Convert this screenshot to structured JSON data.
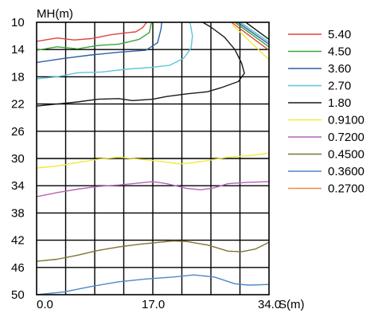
{
  "chart_data": {
    "type": "line",
    "title": "",
    "xlabel": "S(m)",
    "ylabel": "MH(m)",
    "x_ticks": [
      "0.0",
      "17.0",
      "34.0"
    ],
    "x_tick_values": [
      0,
      17,
      34
    ],
    "y_ticks": [
      "10",
      "14",
      "18",
      "22",
      "26",
      "30",
      "34",
      "38",
      "42",
      "46",
      "50"
    ],
    "y_tick_values": [
      10,
      14,
      18,
      22,
      26,
      30,
      34,
      38,
      42,
      46,
      50
    ],
    "xlim": [
      0,
      34
    ],
    "ylim": [
      10,
      50
    ],
    "y_inverted": true,
    "grid": true,
    "legend_position": "right",
    "series": [
      {
        "name": "5.40",
        "color": "#e0443a",
        "points": [
          [
            0,
            12.8
          ],
          [
            3,
            12.3
          ],
          [
            5.5,
            12.6
          ],
          [
            8,
            12.4
          ],
          [
            11,
            11.8
          ],
          [
            13.5,
            11.5
          ],
          [
            14.5,
            11.4
          ],
          [
            15.5,
            10.8
          ],
          [
            16.1,
            10
          ]
        ]
      },
      {
        "name": "4.50",
        "color": "#3aa536",
        "points": [
          [
            0,
            14.1
          ],
          [
            3,
            13.6
          ],
          [
            6,
            13.9
          ],
          [
            9,
            13.4
          ],
          [
            12,
            13.2
          ],
          [
            15,
            12.5
          ],
          [
            16.5,
            11.5
          ],
          [
            16.8,
            10
          ]
        ]
      },
      {
        "name": "3.60",
        "color": "#2e5fa8",
        "points": [
          [
            0,
            15.9
          ],
          [
            4,
            15.3
          ],
          [
            8,
            14.8
          ],
          [
            12,
            14.4
          ],
          [
            16,
            14.1
          ],
          [
            17.7,
            13
          ],
          [
            18.2,
            11
          ],
          [
            18.3,
            10
          ]
        ]
      },
      {
        "name": "2.70",
        "color": "#5ec6d6",
        "points": [
          [
            0,
            18.3
          ],
          [
            3,
            18.0
          ],
          [
            6,
            17.4
          ],
          [
            9.5,
            17.3
          ],
          [
            13,
            16.9
          ],
          [
            17,
            16.6
          ],
          [
            19.5,
            16.3
          ],
          [
            21.5,
            15.3
          ],
          [
            22.6,
            13.8
          ],
          [
            22.8,
            12
          ],
          [
            22.5,
            10.3
          ],
          [
            22.4,
            10
          ]
        ]
      },
      {
        "name": "1.80",
        "color": "#1a1a1a",
        "points": [
          [
            0,
            22.3
          ],
          [
            3,
            22.0
          ],
          [
            6,
            21.7
          ],
          [
            9,
            21.3
          ],
          [
            12,
            21.2
          ],
          [
            14,
            21.5
          ],
          [
            17,
            21.3
          ],
          [
            19,
            20.9
          ],
          [
            22,
            20.5
          ],
          [
            25,
            20.2
          ],
          [
            27,
            19.6
          ],
          [
            29.5,
            18.7
          ],
          [
            30.4,
            17.5
          ],
          [
            30,
            16
          ],
          [
            29,
            14
          ],
          [
            27.5,
            12.2
          ],
          [
            25.5,
            10.7
          ],
          [
            24.3,
            10
          ]
        ]
      },
      {
        "name": "0.9100",
        "color": "#f2e93a",
        "points": [
          [
            0,
            31.4
          ],
          [
            3,
            31.1
          ],
          [
            6,
            30.6
          ],
          [
            9,
            30.1
          ],
          [
            12,
            29.8
          ],
          [
            15,
            30.1
          ],
          [
            18,
            30.4
          ],
          [
            21,
            30.8
          ],
          [
            23,
            30.6
          ],
          [
            25,
            30.3
          ],
          [
            28,
            29.8
          ],
          [
            31,
            29.6
          ],
          [
            34,
            29.2
          ]
        ]
      },
      {
        "name": "0.7200",
        "color": "#b463b6",
        "points": [
          [
            0,
            35.6
          ],
          [
            3,
            35.0
          ],
          [
            6,
            34.5
          ],
          [
            9,
            34.1
          ],
          [
            12,
            33.9
          ],
          [
            15,
            33.6
          ],
          [
            17,
            33.4
          ],
          [
            19,
            33.7
          ],
          [
            22,
            34.4
          ],
          [
            24,
            34.6
          ],
          [
            26,
            34.3
          ],
          [
            28,
            33.7
          ],
          [
            31,
            33.5
          ],
          [
            34,
            33.4
          ]
        ]
      },
      {
        "name": "0.4500",
        "color": "#7d7431",
        "points": [
          [
            0,
            45.1
          ],
          [
            3,
            44.8
          ],
          [
            6,
            44.2
          ],
          [
            9,
            43.5
          ],
          [
            12,
            43.0
          ],
          [
            15,
            42.6
          ],
          [
            18,
            42.3
          ],
          [
            20,
            42.1
          ],
          [
            22,
            42.2
          ],
          [
            25,
            42.7
          ],
          [
            28,
            43.6
          ],
          [
            30,
            43.7
          ],
          [
            32,
            43.3
          ],
          [
            34,
            42.3
          ]
        ]
      },
      {
        "name": "0.3600",
        "color": "#4f87c6",
        "points": [
          [
            0,
            50
          ],
          [
            4,
            49.6
          ],
          [
            8,
            48.8
          ],
          [
            12,
            48.1
          ],
          [
            16,
            47.7
          ],
          [
            20,
            47.4
          ],
          [
            23,
            47.1
          ],
          [
            26,
            47.4
          ],
          [
            29,
            48.4
          ],
          [
            31,
            48.6
          ],
          [
            34,
            48.5
          ]
        ]
      },
      {
        "name": "0.2700",
        "color": "#ec8a4a",
        "points": []
      }
    ],
    "corner_contours": [
      {
        "color": "#e0443a",
        "points": [
          [
            28.5,
            10
          ],
          [
            34,
            14.1
          ]
        ]
      },
      {
        "color": "#3aa536",
        "points": [
          [
            29,
            10
          ],
          [
            34,
            13.6
          ]
        ]
      },
      {
        "color": "#2e5fa8",
        "points": [
          [
            29.4,
            10
          ],
          [
            34,
            13.2
          ]
        ]
      },
      {
        "color": "#5ec6d6",
        "points": [
          [
            29.8,
            10
          ],
          [
            34,
            12.9
          ]
        ]
      },
      {
        "color": "#1a1a1a",
        "points": [
          [
            30.6,
            10
          ],
          [
            34,
            12.5
          ]
        ]
      },
      {
        "color": "#f2e93a",
        "points": [
          [
            28.6,
            10.3
          ],
          [
            34,
            15.5
          ]
        ]
      }
    ]
  }
}
